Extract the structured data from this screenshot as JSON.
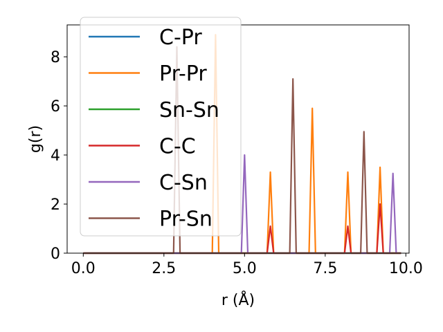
{
  "chart_data": {
    "type": "line",
    "xlabel": "r (Å)",
    "ylabel": "g(r)",
    "xlim": [
      -0.5,
      10.1
    ],
    "ylim": [
      0,
      9.3
    ],
    "xticks": [
      0.0,
      2.5,
      5.0,
      7.5,
      10.0
    ],
    "xtick_labels": [
      "0.0",
      "2.5",
      "5.0",
      "7.5",
      "10.0"
    ],
    "yticks": [
      0,
      2,
      4,
      6,
      8
    ],
    "ytick_labels": [
      "0",
      "2",
      "4",
      "6",
      "8"
    ],
    "grid": false,
    "legend_position": "upper-left",
    "x_range": [
      0.0,
      9.85
    ],
    "peak_half_width": 0.1,
    "series": [
      {
        "name": "C-Pr",
        "color": "#1f77b4",
        "peaks": []
      },
      {
        "name": "Pr-Pr",
        "color": "#ff7f0e",
        "peaks": [
          [
            4.1,
            8.9
          ],
          [
            5.8,
            3.3
          ],
          [
            7.1,
            5.9
          ],
          [
            8.2,
            3.3
          ],
          [
            9.2,
            3.5
          ]
        ]
      },
      {
        "name": "Sn-Sn",
        "color": "#2ca02c",
        "peaks": []
      },
      {
        "name": "C-C",
        "color": "#d62728",
        "peaks": [
          [
            5.8,
            1.1
          ],
          [
            8.2,
            1.1
          ],
          [
            9.2,
            2.0
          ]
        ]
      },
      {
        "name": "C-Sn",
        "color": "#9467bd",
        "peaks": [
          [
            5.0,
            4.0
          ],
          [
            9.6,
            3.25
          ]
        ]
      },
      {
        "name": "Pr-Sn",
        "color": "#8c564b",
        "peaks": [
          [
            2.9,
            8.4
          ],
          [
            6.5,
            7.1
          ],
          [
            8.7,
            4.95
          ]
        ]
      }
    ]
  }
}
